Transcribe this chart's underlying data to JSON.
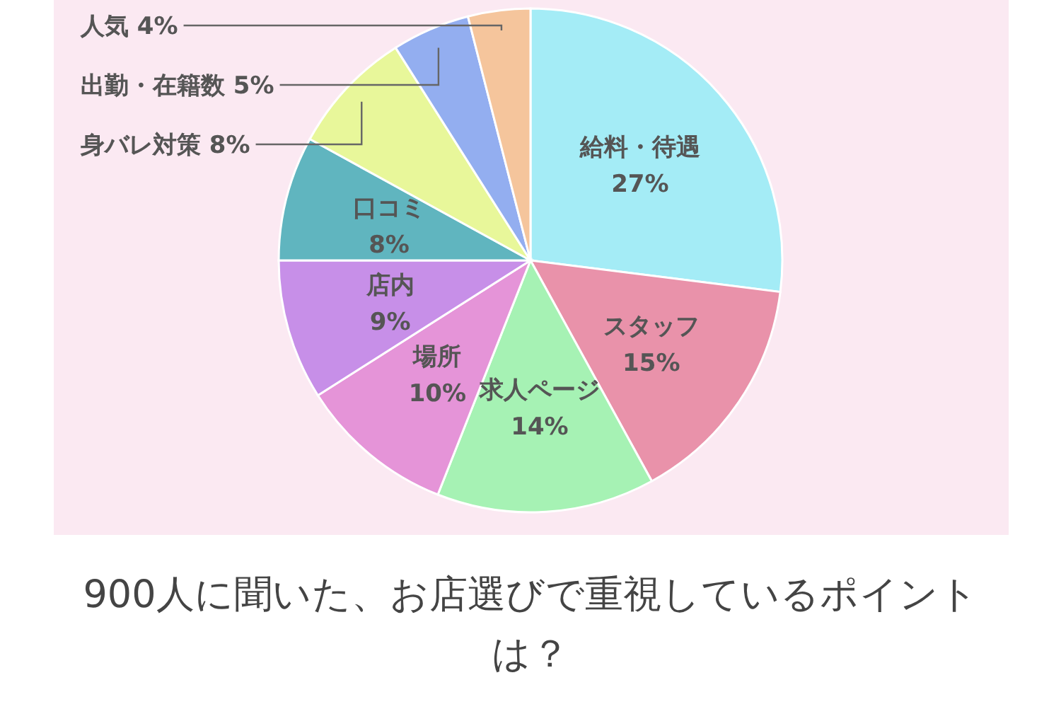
{
  "chart_data": {
    "type": "pie",
    "title": "900人に聞いた、お店選びで重視しているポイントは？",
    "categories": [
      "給料・待遇",
      "スタッフ",
      "求人ページ",
      "場所",
      "店内",
      "口コミ",
      "身バレ対策",
      "出勤・在籍数",
      "人気"
    ],
    "values": [
      27,
      15,
      14,
      10,
      9,
      8,
      8,
      5,
      4
    ],
    "colors": [
      "#a4ecf6",
      "#e992aa",
      "#a6f2b4",
      "#e594d8",
      "#c78fe8",
      "#60b5bf",
      "#e8f79a",
      "#93aef0",
      "#f5c59c"
    ],
    "value_labels": [
      "27%",
      "15%",
      "14%",
      "10%",
      "9%",
      "8%",
      "8%",
      "5%",
      "4%"
    ],
    "legend": false
  }
}
